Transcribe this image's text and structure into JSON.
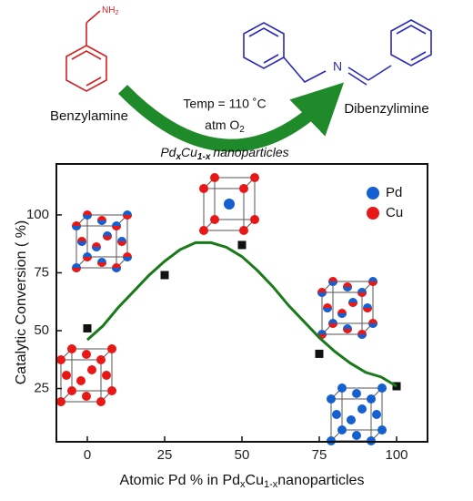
{
  "scheme": {
    "reactant": "Benzylamine",
    "amine_group": [
      "NH",
      "2"
    ],
    "product": "Dibenzylimine",
    "imine_atom": "N",
    "conditions": [
      "Temp = 110 ˚C",
      [
        "atm O",
        "2"
      ]
    ],
    "catalyst": [
      "Pd",
      "x",
      "Cu",
      "1-x",
      "nanoparticles"
    ]
  },
  "chart_data": {
    "type": "scatter",
    "y_label": "Catalytic Conversion ( %)",
    "x_label": [
      "Atomic Pd % in Pd",
      "x",
      "Cu",
      "1-x",
      "nanoparticles"
    ],
    "series": [
      {
        "type": "scatter",
        "marker": "square",
        "color": "#111111",
        "x": [
          0,
          25,
          50,
          75,
          100
        ],
        "values": [
          51,
          74,
          87,
          40,
          26
        ]
      },
      {
        "type": "line",
        "color": "#1a7a1a",
        "x": [
          0,
          5,
          10,
          15,
          20,
          25,
          30,
          35,
          40,
          45,
          50,
          55,
          60,
          65,
          70,
          75,
          80,
          85,
          90,
          95,
          100
        ],
        "values": [
          46,
          52,
          60,
          67,
          74,
          80,
          85,
          88,
          88,
          86,
          82,
          76,
          69,
          61,
          54,
          47,
          41,
          36,
          32,
          30,
          26
        ]
      }
    ],
    "legend": [
      {
        "name": "Pd",
        "color": "#1560d0"
      },
      {
        "name": "Cu",
        "color": "#e81818"
      }
    ],
    "legend_position": "upper right",
    "xlim": [
      -10,
      110
    ],
    "xticks": [
      0,
      25,
      50,
      75,
      100
    ],
    "ylim": [
      2,
      122
    ],
    "yticks": [
      25,
      50,
      75,
      100
    ]
  }
}
